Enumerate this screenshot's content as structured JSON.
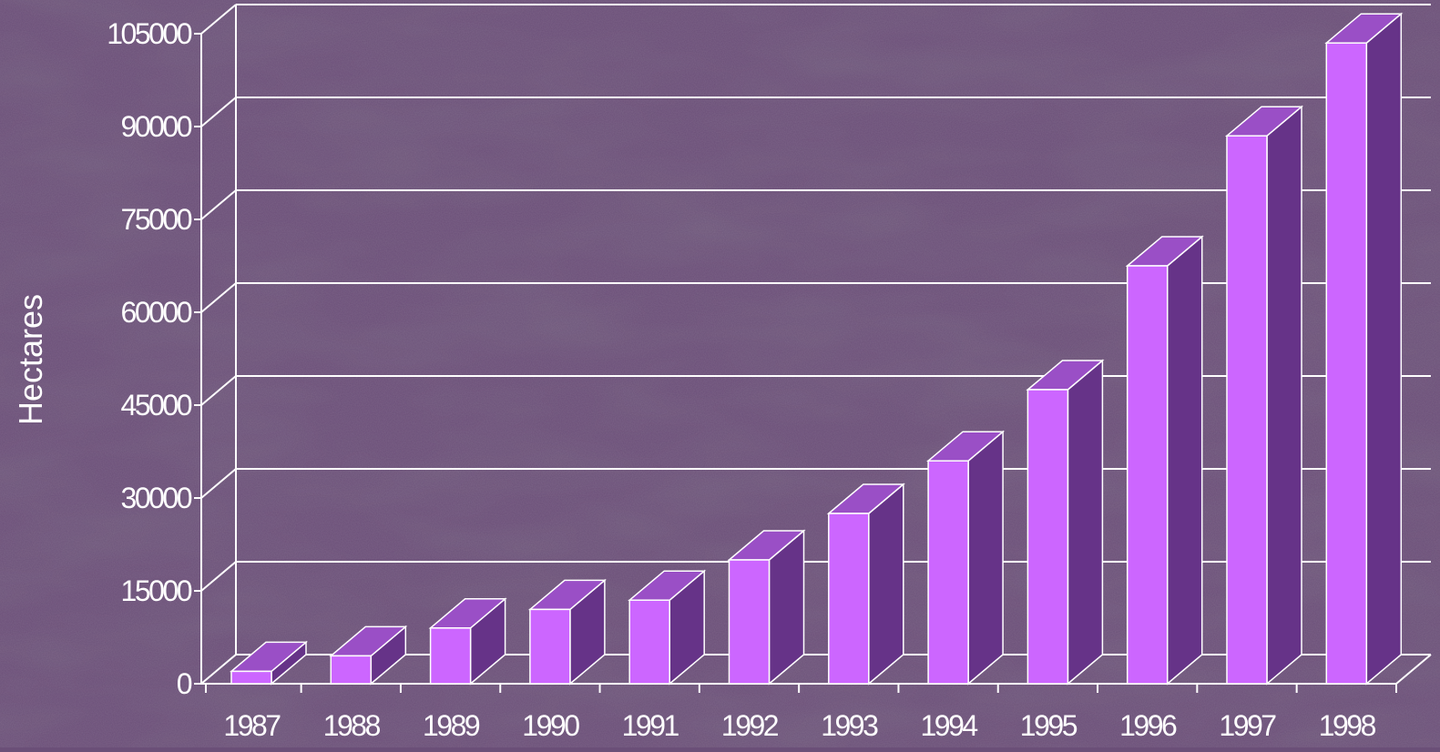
{
  "chart_data": {
    "type": "bar",
    "categories": [
      "1987",
      "1988",
      "1989",
      "1990",
      "1991",
      "1992",
      "1993",
      "1994",
      "1995",
      "1996",
      "1997",
      "1998"
    ],
    "series": [
      {
        "values": [
          2000,
          4500,
          9000,
          12000,
          13500,
          20000,
          27500,
          36000,
          47500,
          67500,
          88500,
          103500
        ]
      }
    ],
    "title": "",
    "xlabel": "",
    "ylabel": "Hectares",
    "ylim": [
      0,
      105000
    ],
    "yticks": [
      0,
      15000,
      30000,
      45000,
      60000,
      75000,
      90000,
      105000
    ],
    "ytick_labels": [
      "0",
      "15000",
      "30000",
      "45000",
      "60000",
      "75000",
      "90000",
      "105000"
    ],
    "grid": true,
    "legend": "none",
    "style": "3d-column",
    "colors": {
      "background": "#6b4f78",
      "bar_front": "#cc66ff",
      "bar_top": "#9a4fc6",
      "bar_side": "#663388",
      "grid": "#ffffff",
      "text": "#ffffff"
    }
  }
}
